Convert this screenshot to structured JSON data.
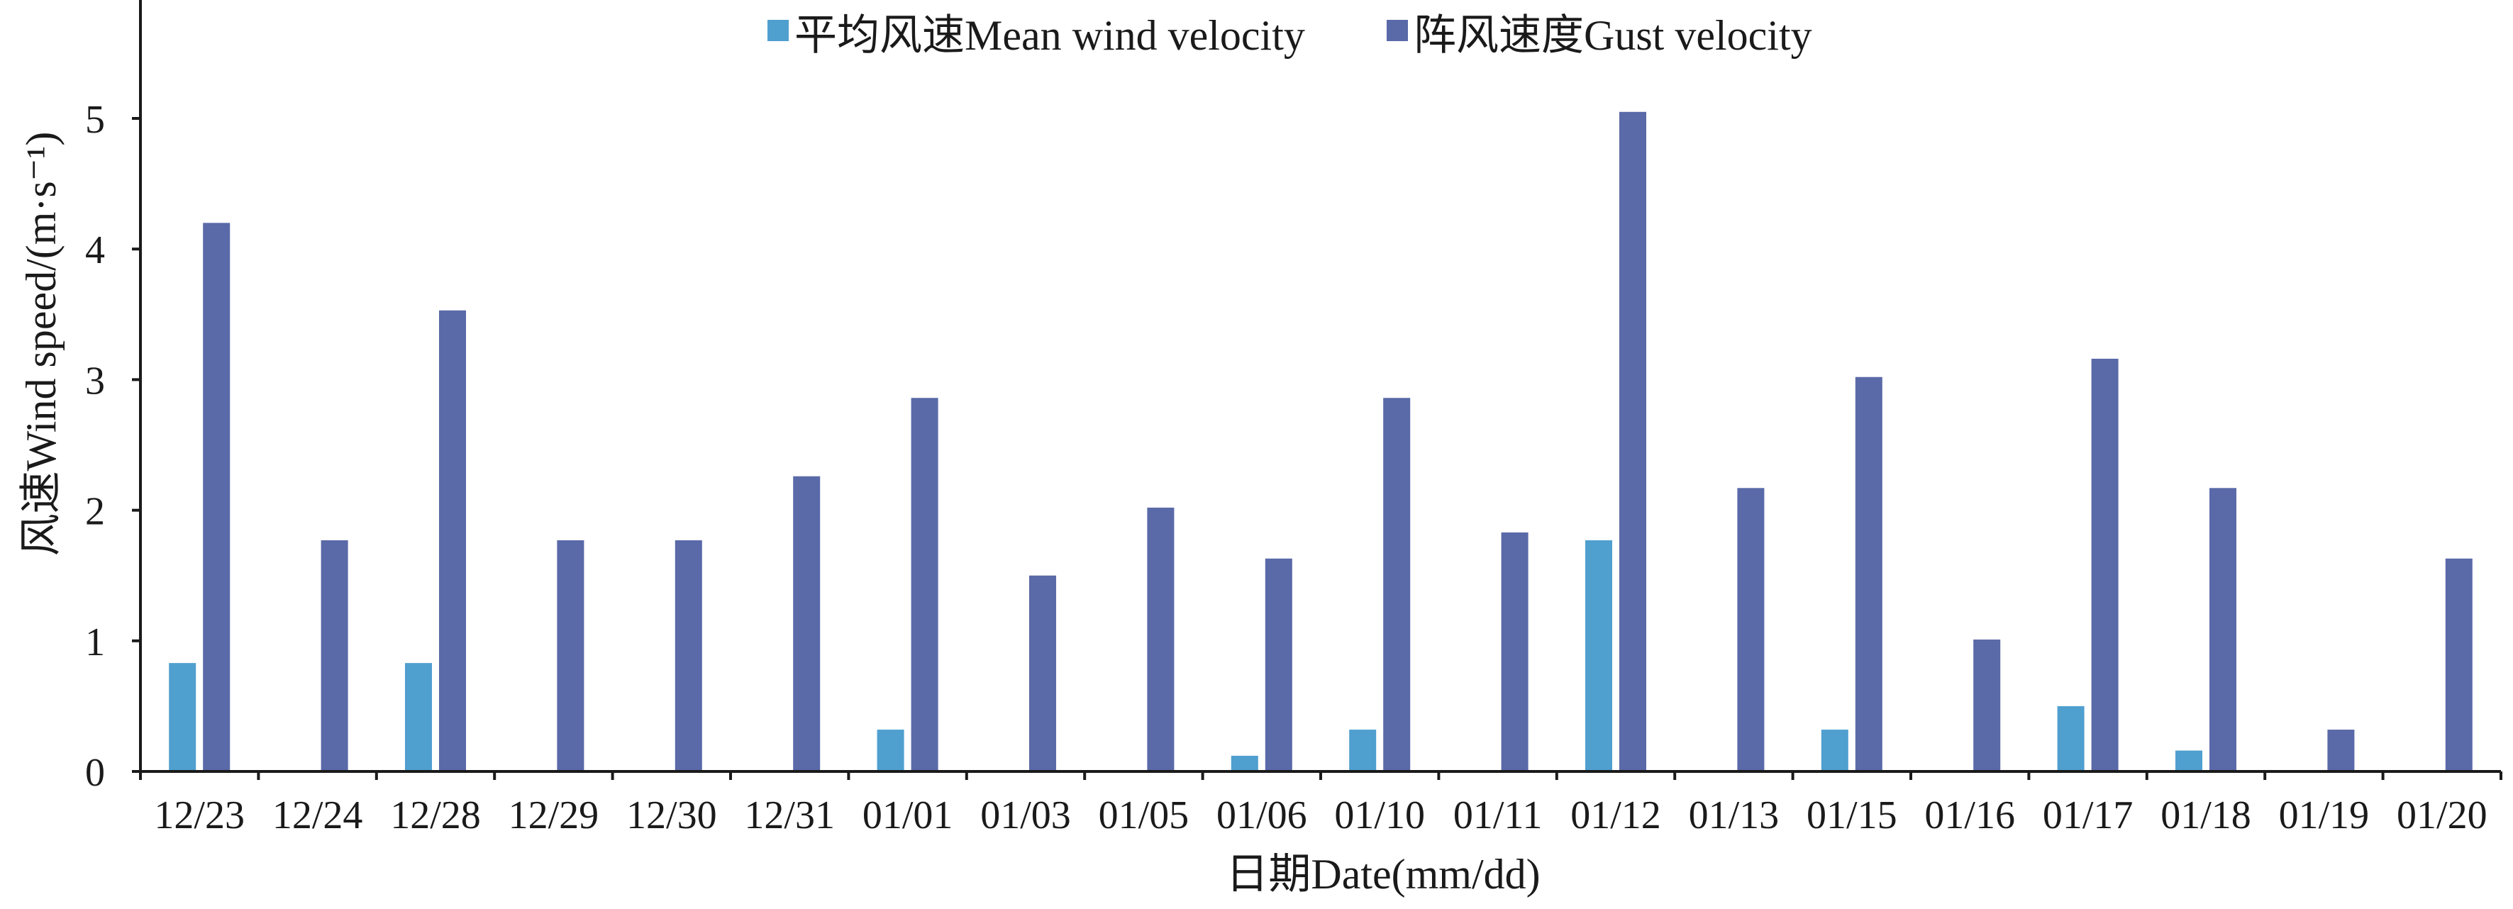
{
  "chart_data": {
    "type": "bar",
    "categories": [
      "12/23",
      "12/24",
      "12/28",
      "12/29",
      "12/30",
      "12/31",
      "01/01",
      "01/03",
      "01/05",
      "01/06",
      "01/10",
      "01/11",
      "01/12",
      "01/13",
      "01/15",
      "01/16",
      "01/17",
      "01/18",
      "01/19",
      "01/20"
    ],
    "series": [
      {
        "name": "平均风速Mean wind velocity",
        "color": "#4f9fcf",
        "values": [
          0.83,
          0,
          0.83,
          0,
          0,
          0,
          0.32,
          0,
          0,
          0.12,
          0.32,
          0,
          1.77,
          0,
          0.32,
          0,
          0.5,
          0.16,
          0,
          0
        ]
      },
      {
        "name": "阵风速度Gust velocity",
        "color": "#5a69a8",
        "values": [
          4.2,
          1.77,
          3.53,
          1.77,
          1.77,
          2.26,
          2.86,
          1.5,
          2.02,
          1.63,
          2.86,
          1.83,
          5.05,
          2.17,
          3.02,
          1.01,
          3.16,
          2.17,
          0.32,
          1.63
        ]
      }
    ],
    "xlabel": "日期Date(mm/dd)",
    "ylabel": "风速Wind speed/(m·s⁻¹)",
    "ylim": [
      0,
      6
    ],
    "yticks": [
      "0",
      "1",
      "2",
      "3",
      "4",
      "5"
    ],
    "grid": false,
    "legend_position": "top-center"
  }
}
